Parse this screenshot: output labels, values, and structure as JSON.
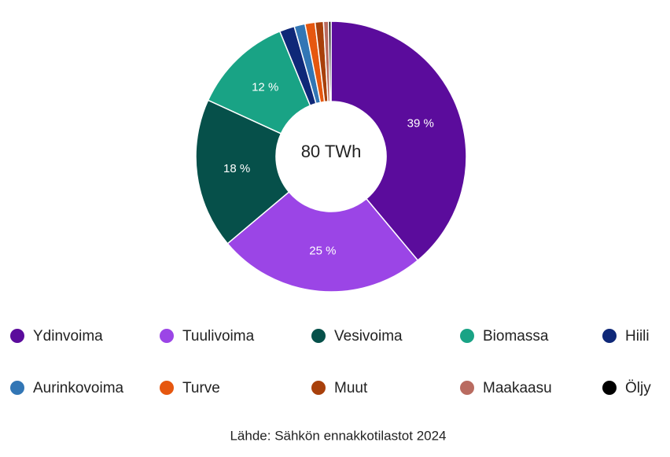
{
  "chart_data": {
    "type": "donut",
    "center_label": "80 TWh",
    "source": "Lähde: Sähkön ennakkotilastot 2024",
    "categories": [
      "Ydinvoima",
      "Tuulivoima",
      "Vesivoima",
      "Biomassa",
      "Hiili",
      "Aurinkovoima",
      "Turve",
      "Muut",
      "Maakaasu",
      "Öljy"
    ],
    "values": [
      39,
      25,
      18,
      12,
      1.8,
      1.3,
      1.2,
      1.0,
      0.6,
      0.3
    ],
    "value_labels": [
      "39 %",
      "25 %",
      "18 %",
      "12 %",
      null,
      null,
      null,
      null,
      null,
      null
    ],
    "colors": [
      "#5b0c9c",
      "#9b45e6",
      "#06504a",
      "#19a385",
      "#0f2878",
      "#3276b5",
      "#e6570f",
      "#a8400b",
      "#b96b60",
      "#000000"
    ],
    "legend": "bottom"
  }
}
